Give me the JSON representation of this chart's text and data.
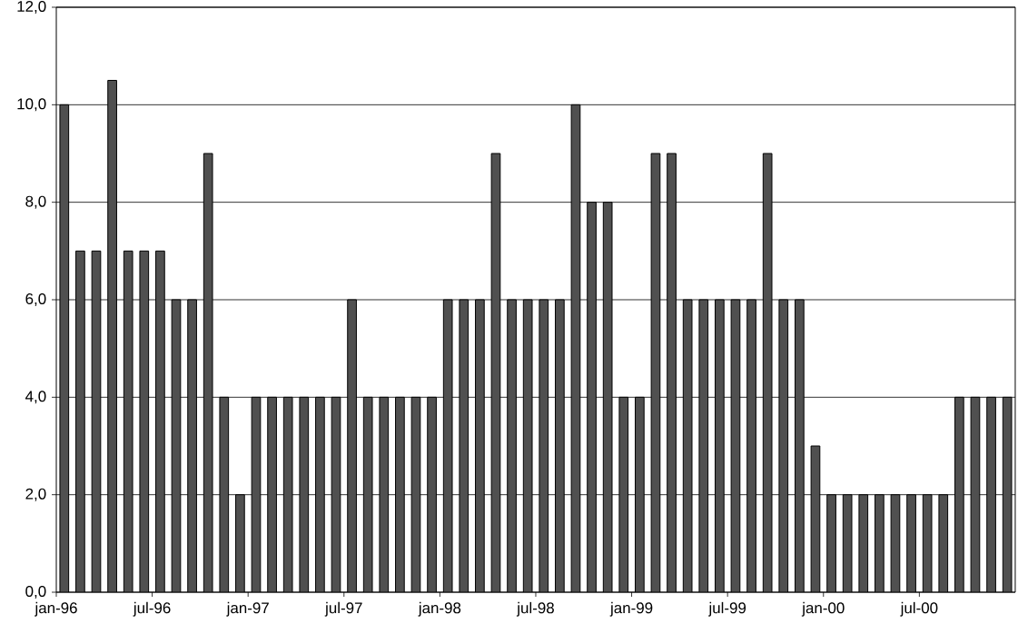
{
  "chart_data": {
    "type": "bar",
    "categories": [
      "jan-96",
      null,
      null,
      null,
      null,
      null,
      "jul-96",
      null,
      null,
      null,
      null,
      null,
      "jan-97",
      null,
      null,
      null,
      null,
      null,
      "jul-97",
      null,
      null,
      null,
      null,
      null,
      "jan-98",
      null,
      null,
      null,
      null,
      null,
      "jul-98",
      null,
      null,
      null,
      null,
      null,
      "jan-99",
      null,
      null,
      null,
      null,
      null,
      "jul-99",
      null,
      null,
      null,
      null,
      null,
      "jan-00",
      null,
      null,
      null,
      null,
      null,
      "jul-00",
      null,
      null,
      null,
      null,
      null
    ],
    "values": [
      10,
      7,
      7,
      10.5,
      7,
      7,
      7,
      6,
      6,
      9,
      4,
      2,
      4,
      4,
      4,
      4,
      4,
      4,
      6,
      4,
      4,
      4,
      4,
      4,
      6,
      6,
      6,
      9,
      6,
      6,
      6,
      6,
      10,
      8,
      8,
      4,
      4,
      9,
      9,
      6,
      6,
      6,
      6,
      6,
      9,
      6,
      6,
      3,
      2,
      2,
      2,
      2,
      2,
      2,
      2,
      2,
      4,
      4,
      4,
      4
    ],
    "color": "#505050",
    "ylim": [
      0,
      12
    ],
    "yticks": [
      {
        "value": 0,
        "label": "0,0"
      },
      {
        "value": 2,
        "label": "2,0"
      },
      {
        "value": 4,
        "label": "4,0"
      },
      {
        "value": 6,
        "label": "6,0"
      },
      {
        "value": 8,
        "label": "8,0"
      },
      {
        "value": 10,
        "label": "10,0"
      },
      {
        "value": 12,
        "label": "12,0"
      }
    ],
    "grid": "y"
  }
}
